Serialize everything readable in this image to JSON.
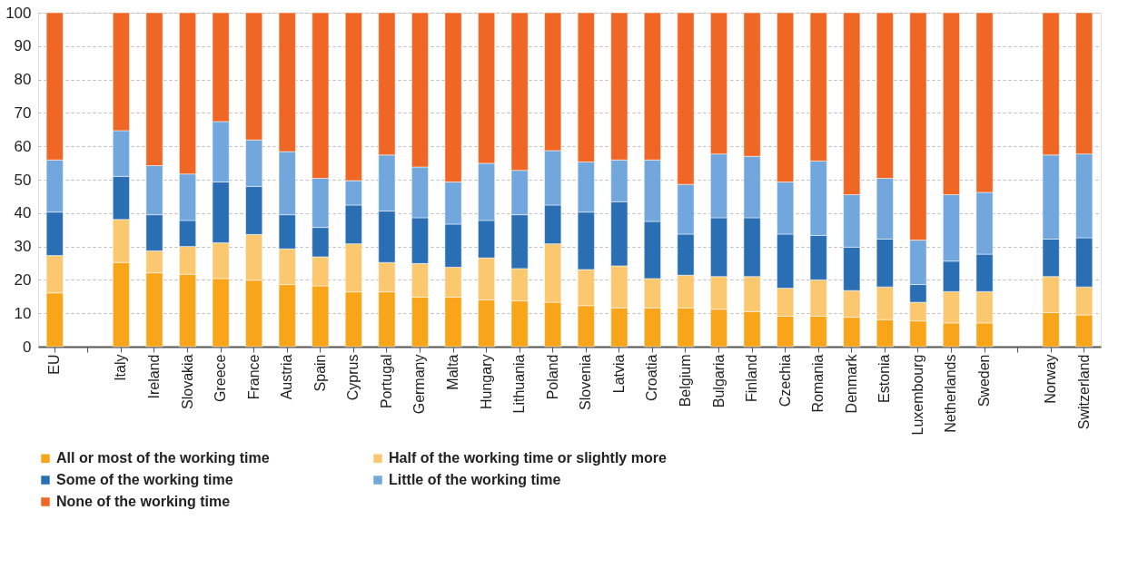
{
  "chart_data": {
    "type": "bar",
    "stacked": true,
    "grid": "y",
    "legend": "bottom",
    "categories": [
      "EU",
      null,
      "Italy",
      "Ireland",
      "Slovakia",
      "Greece",
      "France",
      "Austria",
      "Spain",
      "Cyprus",
      "Portugal",
      "Germany",
      "Malta",
      "Hungary",
      "Lithuania",
      "Poland",
      "Slovenia",
      "Latvia",
      "Croatia",
      "Belgium",
      "Bulgaria",
      "Finland",
      "Czechia",
      "Romania",
      "Denmark",
      "Estonia",
      "Luxembourg",
      "Netherlands",
      "Sweden",
      null,
      "Norway",
      "Switzerland"
    ],
    "ylim": [
      0,
      100
    ],
    "yticks": [
      0,
      10,
      20,
      30,
      40,
      50,
      60,
      70,
      80,
      90,
      100
    ],
    "series": [
      {
        "name": "All or most of the working time",
        "color": "#f9a51a",
        "values": [
          16.1,
          null,
          25.2,
          22.1,
          21.7,
          20.4,
          19.9,
          18.6,
          18.2,
          16.4,
          16.4,
          14.8,
          14.8,
          14.0,
          13.7,
          13.3,
          12.3,
          11.6,
          11.6,
          11.6,
          11.2,
          10.5,
          9.1,
          9.1,
          8.8,
          8.1,
          7.7,
          7.1,
          7.1,
          null,
          10.2,
          9.5
        ]
      },
      {
        "name": "Half of the working time or slightly more",
        "color": "#fbc870",
        "values": [
          11.2,
          null,
          12.9,
          6.6,
          8.3,
          10.7,
          13.7,
          10.7,
          8.7,
          14.4,
          8.8,
          10.1,
          9.0,
          12.6,
          9.7,
          17.5,
          10.8,
          12.6,
          8.8,
          9.8,
          9.8,
          10.5,
          8.4,
          10.9,
          8.0,
          9.8,
          5.6,
          9.4,
          9.4,
          null,
          10.8,
          8.4
        ]
      },
      {
        "name": "Some of the working time",
        "color": "#2a6eb4",
        "values": [
          13.0,
          null,
          12.9,
          10.8,
          7.8,
          18.2,
          14.4,
          10.2,
          8.8,
          11.6,
          15.4,
          13.7,
          12.9,
          11.2,
          16.1,
          11.6,
          17.2,
          19.2,
          17.1,
          12.3,
          17.6,
          17.6,
          16.2,
          13.3,
          13.0,
          14.3,
          5.3,
          9.1,
          11.2,
          null,
          11.2,
          14.7
        ]
      },
      {
        "name": "Little of the working time",
        "color": "#72a7dd",
        "values": [
          15.6,
          null,
          13.7,
          14.7,
          13.9,
          18.1,
          13.9,
          18.9,
          14.7,
          7.3,
          16.8,
          15.2,
          12.6,
          17.1,
          13.3,
          16.3,
          15.0,
          12.5,
          18.4,
          14.9,
          19.1,
          18.4,
          15.6,
          22.3,
          15.7,
          18.2,
          13.3,
          19.9,
          18.5,
          null,
          25.2,
          25.1
        ]
      },
      {
        "name": "None of the working time",
        "color": "#f06624",
        "values": [
          44.1,
          null,
          35.3,
          45.8,
          48.3,
          32.6,
          38.1,
          41.6,
          49.6,
          50.3,
          42.6,
          46.2,
          50.7,
          45.1,
          47.2,
          41.3,
          44.7,
          44.1,
          44.1,
          51.4,
          42.3,
          43.0,
          50.7,
          44.4,
          54.5,
          49.6,
          68.1,
          54.5,
          53.8,
          null,
          42.6,
          42.3
        ]
      }
    ]
  }
}
